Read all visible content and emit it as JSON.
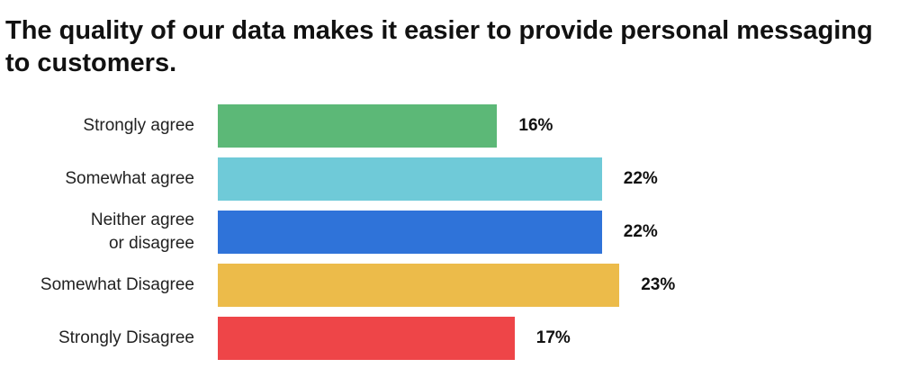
{
  "chart_data": {
    "type": "bar",
    "orientation": "horizontal",
    "title": "The quality of our data makes it easier to provide personal messaging to customers.",
    "categories": [
      "Strongly agree",
      "Somewhat agree",
      "Neither agree\nor disagree",
      "Somewhat Disagree",
      "Strongly Disagree"
    ],
    "values": [
      16,
      22,
      22,
      23,
      17
    ],
    "value_labels": [
      "16%",
      "22%",
      "22%",
      "23%",
      "17%"
    ],
    "colors": [
      "#5cb877",
      "#6fcad8",
      "#2f73d9",
      "#ecbb4a",
      "#ee4548"
    ]
  }
}
